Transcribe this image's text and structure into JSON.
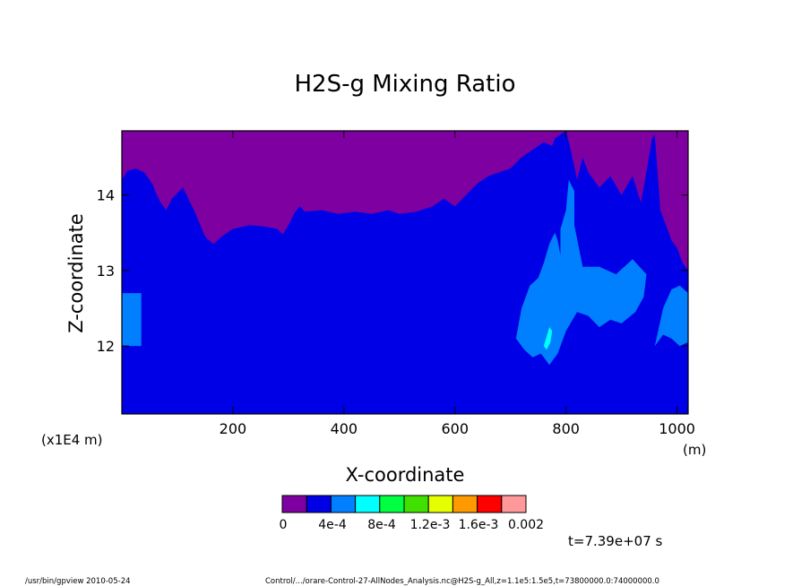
{
  "chart_data": {
    "type": "heatmap",
    "title": "H2S-g Mixing Ratio",
    "xlabel": "X-coordinate",
    "ylabel": "Z-coordinate",
    "x_unit": "(m)",
    "y_unit": "(x1E4 m)",
    "xlim": [
      0,
      1020
    ],
    "ylim": [
      11.1,
      14.85
    ],
    "x_ticks": [
      200,
      400,
      600,
      800,
      1000
    ],
    "y_ticks": [
      12,
      13,
      14
    ],
    "grid": false,
    "colorbar": {
      "colors": [
        "#7f00a0",
        "#0000e6",
        "#0080ff",
        "#00ffff",
        "#00ff40",
        "#40e000",
        "#e6ff00",
        "#ff9900",
        "#ff0000",
        "#ff9999"
      ],
      "labels": [
        "0",
        "4e-4",
        "8e-4",
        "1.2e-3",
        "1.6e-3",
        "0.002"
      ]
    },
    "regions": [
      {
        "name": "upper",
        "level": "0",
        "color": "#7f00a0",
        "boundary_x": [
          0,
          10,
          25,
          40,
          55,
          60,
          70,
          80,
          90,
          110,
          130,
          150,
          165,
          180,
          200,
          230,
          260,
          280,
          290,
          300,
          310,
          320,
          330,
          360,
          390,
          420,
          450,
          480,
          500,
          530,
          560,
          580,
          600,
          620,
          640,
          660,
          680,
          700,
          720,
          740,
          760,
          775,
          780,
          790,
          800,
          810,
          820,
          830,
          840,
          860,
          880,
          900,
          920,
          935,
          945,
          955,
          960,
          970,
          990,
          1000,
          1010,
          1020
        ],
        "boundary_z": [
          14.2,
          14.32,
          14.35,
          14.3,
          14.15,
          14.05,
          13.9,
          13.8,
          13.95,
          14.1,
          13.8,
          13.45,
          13.35,
          13.45,
          13.55,
          13.6,
          13.58,
          13.55,
          13.48,
          13.6,
          13.75,
          13.85,
          13.78,
          13.8,
          13.75,
          13.78,
          13.75,
          13.8,
          13.75,
          13.78,
          13.85,
          13.95,
          13.85,
          14.0,
          14.15,
          14.25,
          14.3,
          14.35,
          14.5,
          14.6,
          14.7,
          14.65,
          14.75,
          14.8,
          14.85,
          14.55,
          14.2,
          14.5,
          14.3,
          14.1,
          14.25,
          14.0,
          14.25,
          13.9,
          14.3,
          14.75,
          14.8,
          13.8,
          13.4,
          13.3,
          13.1,
          13.0
        ]
      },
      {
        "name": "middle",
        "level": "4e-4",
        "color": "#0000e6"
      },
      {
        "name": "patch-left",
        "level": "8e-4",
        "color": "#0080ff",
        "x": [
          0,
          35
        ],
        "z": [
          12.0,
          12.7
        ]
      },
      {
        "name": "patch-right-cluster",
        "level": "8e-4",
        "color": "#0080ff",
        "outline_x": [
          710,
          720,
          735,
          750,
          760,
          770,
          780,
          785,
          790,
          790,
          800,
          805,
          815,
          815,
          830,
          860,
          890,
          920,
          945,
          940,
          925,
          900,
          880,
          860,
          840,
          820,
          800,
          785,
          770,
          755,
          740,
          725,
          715
        ],
        "outline_z": [
          12.1,
          12.5,
          12.8,
          12.9,
          13.1,
          13.35,
          13.5,
          13.4,
          13.2,
          13.55,
          13.8,
          14.2,
          14.05,
          13.6,
          13.05,
          13.05,
          12.95,
          13.15,
          12.95,
          12.65,
          12.45,
          12.3,
          12.35,
          12.25,
          12.4,
          12.45,
          12.2,
          11.9,
          11.75,
          11.9,
          11.85,
          11.95,
          12.05
        ]
      },
      {
        "name": "patch-far-right",
        "level": "8e-4",
        "color": "#0080ff",
        "outline_x": [
          960,
          975,
          990,
          1005,
          1020,
          1020,
          1005,
          990,
          975
        ],
        "outline_z": [
          12.0,
          12.5,
          12.75,
          12.8,
          12.7,
          12.05,
          12.0,
          12.1,
          12.15
        ]
      },
      {
        "name": "patch-cyan",
        "level": "8e-4",
        "color": "#00ffff",
        "outline_x": [
          760,
          765,
          772,
          775,
          770
        ],
        "outline_z": [
          12.0,
          11.95,
          12.05,
          12.2,
          12.25
        ]
      }
    ]
  },
  "time_label": "t=7.39e+07 s",
  "footer": {
    "left": "/usr/bin/gpview   2010-05-24",
    "right": "Control/.../orare-Control-27-AllNodes_Analysis.nc@H2S-g_All,z=1.1e5:1.5e5,t=73800000.0:74000000.0"
  }
}
